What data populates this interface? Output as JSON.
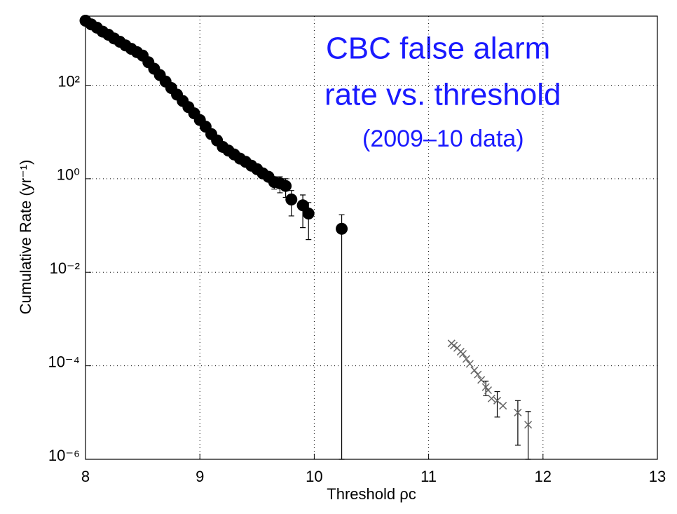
{
  "chart_data": {
    "type": "scatter",
    "annotations": [
      "CBC false alarm",
      "rate vs. threshold",
      "(2009–10 data)"
    ],
    "x_label": "Threshold ρc",
    "y_label": "Cumulative Rate (yr⁻¹)",
    "xlim": [
      8,
      13
    ],
    "xticks": [
      8,
      9,
      10,
      11,
      12,
      13
    ],
    "ylim": [
      1e-06,
      3000
    ],
    "yticks": [
      {
        "value": 1e-06,
        "label": "10⁻⁶"
      },
      {
        "value": 0.0001,
        "label": "10⁻⁴"
      },
      {
        "value": 0.01,
        "label": "10⁻²"
      },
      {
        "value": 1,
        "label": "10⁰"
      },
      {
        "value": 100,
        "label": "10²"
      }
    ],
    "log_y": true,
    "grid": true,
    "series": [
      {
        "marker": "circle",
        "color": "#000000",
        "x": [
          8.0,
          8.05,
          8.1,
          8.15,
          8.2,
          8.25,
          8.3,
          8.35,
          8.4,
          8.45,
          8.5,
          8.55,
          8.6,
          8.65,
          8.7,
          8.75,
          8.8,
          8.85,
          8.9,
          8.95,
          9.0,
          9.05,
          9.1,
          9.15,
          9.2,
          9.25,
          9.3,
          9.35,
          9.4,
          9.45,
          9.5,
          9.55,
          9.6,
          9.65,
          9.7,
          9.75,
          9.8,
          9.9,
          9.95,
          10.24
        ],
        "values": [
          2400,
          2000,
          1700,
          1400,
          1200,
          1000,
          850,
          710,
          600,
          510,
          430,
          310,
          225,
          165,
          120,
          87,
          63,
          46,
          34,
          25,
          18,
          13,
          9,
          6.6,
          4.8,
          4,
          3.3,
          2.7,
          2.3,
          1.9,
          1.6,
          1.3,
          1.1,
          0.85,
          0.8,
          0.7,
          0.36,
          0.27,
          0.18,
          0.085
        ],
        "errors": [
          null,
          null,
          null,
          null,
          null,
          null,
          null,
          null,
          null,
          null,
          null,
          null,
          null,
          null,
          null,
          null,
          null,
          null,
          null,
          null,
          null,
          null,
          null,
          null,
          null,
          null,
          null,
          null,
          null,
          null,
          null,
          null,
          null,
          0.25,
          0.3,
          0.3,
          0.2,
          0.18,
          0.13,
          0.085
        ]
      },
      {
        "marker": "cross",
        "color": "#666666",
        "x": [
          11.2,
          11.22,
          11.25,
          11.28,
          11.3,
          11.33,
          11.36,
          11.4,
          11.43,
          11.46,
          11.5,
          11.52,
          11.55,
          11.6,
          11.65,
          11.78,
          11.87
        ],
        "values": [
          0.0003,
          0.00027,
          0.00024,
          0.0002,
          0.00018,
          0.00014,
          0.00011,
          8e-05,
          6.5e-05,
          5e-05,
          3.5e-05,
          3e-05,
          2e-05,
          1.8e-05,
          1.4e-05,
          1e-05,
          5.5e-06
        ],
        "errors": [
          null,
          null,
          null,
          null,
          null,
          null,
          null,
          null,
          null,
          null,
          1.2e-05,
          null,
          null,
          1e-05,
          null,
          8e-06,
          5e-06
        ]
      }
    ]
  }
}
